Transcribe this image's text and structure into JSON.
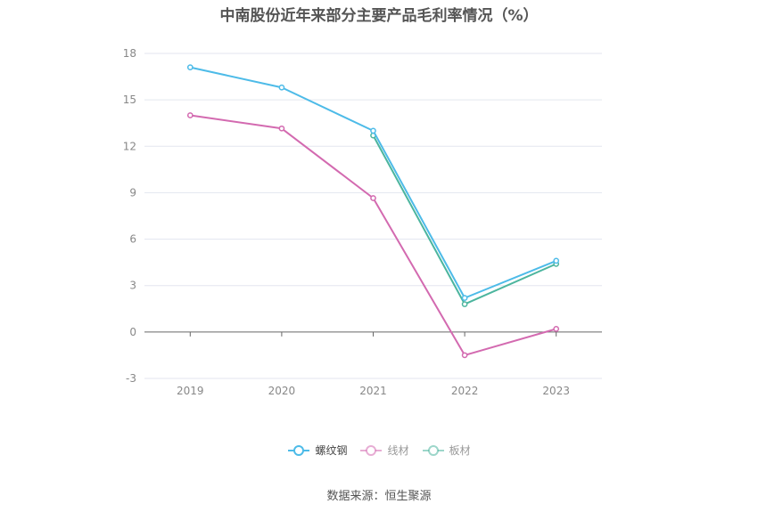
{
  "chart_data": {
    "type": "line",
    "title": "中南股份近年来部分主要产品毛利率情况（%）",
    "categories": [
      "2019",
      "2020",
      "2021",
      "2022",
      "2023"
    ],
    "ylim": [
      -3,
      18
    ],
    "yticks": [
      "18",
      "15",
      "12",
      "9",
      "6",
      "3",
      "0",
      "-3"
    ],
    "grid": true,
    "legend_position": "bottom",
    "series": [
      {
        "name": "螺纹钢",
        "color": "#4dbbe8",
        "values": [
          17.1,
          15.8,
          13.0,
          2.2,
          4.6
        ]
      },
      {
        "name": "线材",
        "color": "#d36ab0",
        "values": [
          14.0,
          13.15,
          8.65,
          -1.5,
          0.2
        ]
      },
      {
        "name": "板材",
        "color": "#4cb59e",
        "values": [
          null,
          null,
          12.7,
          1.8,
          4.4
        ]
      }
    ]
  },
  "source": "数据来源：恒生聚源"
}
